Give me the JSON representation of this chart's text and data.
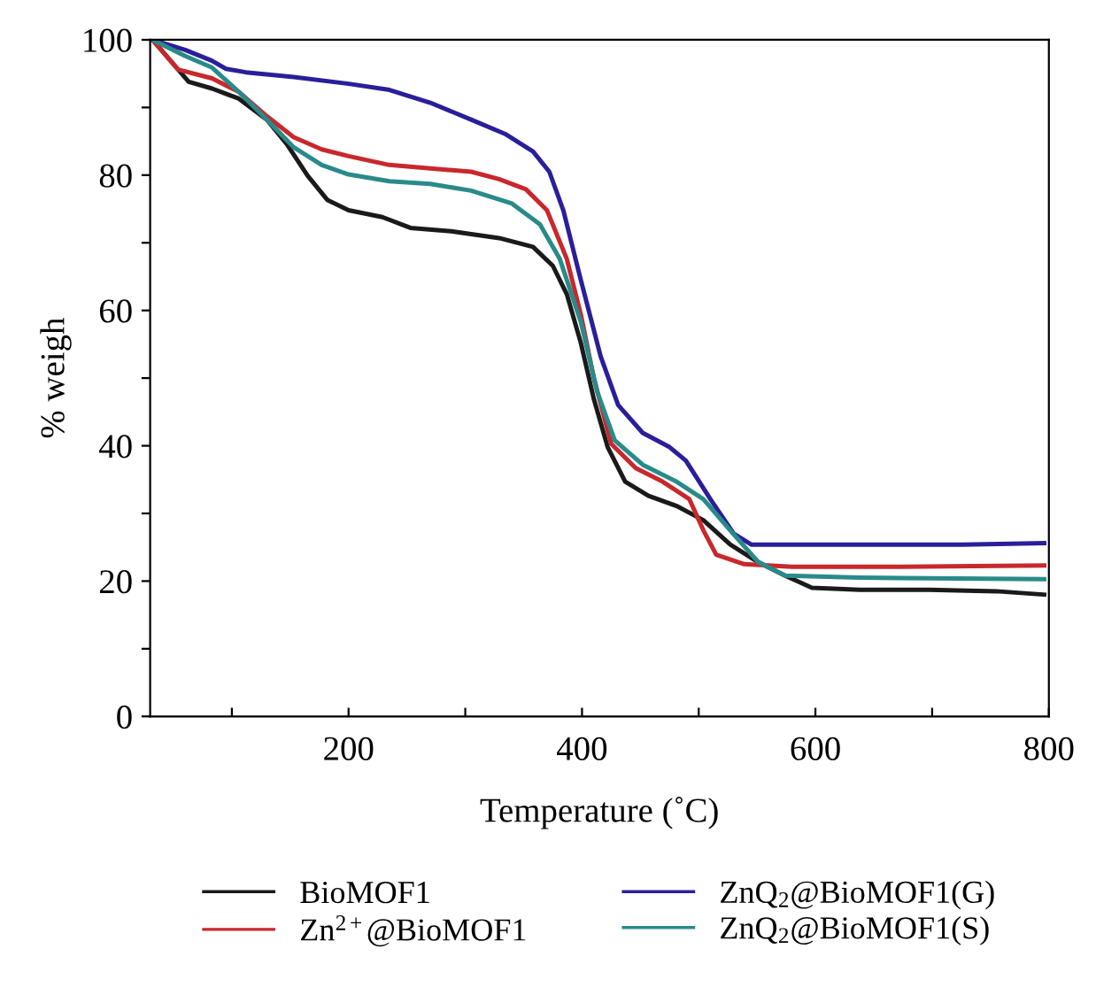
{
  "chart_data": {
    "type": "line",
    "xlabel": "Temperature (˚C)",
    "ylabel": "% weigh",
    "xlim": [
      30,
      800
    ],
    "ylim": [
      0,
      100
    ],
    "xticks": [
      {
        "value": 100,
        "label": null
      },
      200,
      {
        "value": 300,
        "label": null
      },
      400,
      {
        "value": 500,
        "label": null
      },
      600,
      {
        "value": 700,
        "label": null
      },
      800
    ],
    "yticks": [
      0,
      {
        "value": 10,
        "label": null
      },
      20,
      {
        "value": 30,
        "label": null
      },
      40,
      {
        "value": 50,
        "label": null
      },
      60,
      {
        "value": 70,
        "label": null
      },
      80,
      {
        "value": 90,
        "label": null
      },
      100
    ],
    "grid": false,
    "legend": "bottom",
    "line_style": "solid",
    "marker": "none",
    "series": [
      {
        "name": "BioMOF1",
        "color": "#1a1a1a",
        "x": [
          32,
          63,
          83,
          106,
          130,
          147,
          165,
          182,
          200,
          229,
          253,
          288,
          329,
          358,
          375,
          387,
          399,
          410,
          422,
          437,
          457,
          481,
          504,
          527,
          551,
          574,
          597,
          638,
          697,
          755,
          796
        ],
        "values": [
          100,
          93.8,
          92.8,
          91.3,
          88.2,
          84.6,
          79.9,
          76.3,
          74.8,
          73.8,
          72.2,
          71.7,
          70.7,
          69.4,
          66.6,
          62.4,
          55.2,
          47,
          39.8,
          34.7,
          32.6,
          31.1,
          29,
          25.4,
          22.8,
          20.8,
          19,
          18.7,
          18.7,
          18.5,
          18
        ]
      },
      {
        "name": "Zn$^{2+}$@BioMOF1",
        "color": "#c8282d",
        "x": [
          32,
          54,
          83,
          106,
          130,
          153,
          177,
          200,
          235,
          270,
          305,
          329,
          352,
          370,
          387,
          399,
          410,
          425,
          446,
          469,
          492,
          504,
          515,
          539,
          580,
          668,
          796
        ],
        "values": [
          100,
          95.6,
          94.3,
          92.3,
          88.7,
          85.6,
          83.8,
          82.8,
          81.5,
          81,
          80.5,
          79.4,
          77.9,
          74.8,
          67.6,
          59.4,
          50.1,
          40.3,
          36.7,
          34.7,
          32.1,
          27.5,
          23.9,
          22.5,
          22.1,
          22.1,
          22.3
        ]
      },
      {
        "name": "ZnQ$_{2}$@BioMOF1(G)",
        "color": "#2a1f9a",
        "x": [
          32,
          60,
          83,
          95,
          112,
          153,
          200,
          235,
          270,
          305,
          334,
          358,
          372,
          384,
          399,
          416,
          431,
          452,
          475,
          489,
          510,
          530,
          545,
          609,
          726,
          796
        ],
        "values": [
          100,
          98.5,
          96.9,
          95.7,
          95.2,
          94.5,
          93.5,
          92.6,
          90.7,
          88.2,
          86.1,
          83.5,
          80.5,
          74.8,
          64.5,
          53.2,
          46,
          41.9,
          39.8,
          37.8,
          32.1,
          27,
          25.4,
          25.4,
          25.4,
          25.6
        ]
      },
      {
        "name": "ZnQ$_{2}$@BioMOF1(S)",
        "color": "#2a8a8a",
        "x": [
          32,
          60,
          83,
          106,
          130,
          153,
          177,
          200,
          235,
          270,
          305,
          340,
          364,
          381,
          399,
          413,
          428,
          452,
          481,
          504,
          527,
          551,
          574,
          638,
          796
        ],
        "values": [
          100,
          97.6,
          95.9,
          92.3,
          88.2,
          84.1,
          81.5,
          80.1,
          79.1,
          78.7,
          77.7,
          75.8,
          72.7,
          67.6,
          58.3,
          48,
          40.8,
          37.2,
          34.7,
          32.1,
          27.5,
          22.8,
          20.8,
          20.5,
          20.3
        ]
      }
    ]
  }
}
